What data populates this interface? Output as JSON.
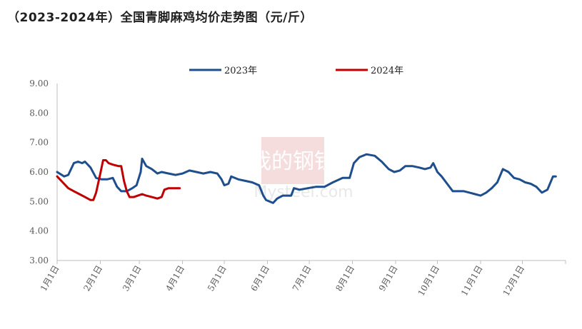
{
  "header": {
    "title": "（2023-2024年）全国青脚麻鸡均价走势图（元/斤）"
  },
  "watermark": {
    "text_cn": "我的钢铁",
    "text_en": "Mysteel.com"
  },
  "chart_data": {
    "type": "line",
    "title": "（2023-2024年）全国青脚麻鸡均价走势图（元/斤）",
    "xlabel": "",
    "ylabel": "",
    "ylim": [
      3.0,
      9.0
    ],
    "y_ticks": [
      "9.00",
      "8.00",
      "7.00",
      "6.00",
      "5.00",
      "4.00",
      "3.00"
    ],
    "x_ticks": [
      "1月1日",
      "2月1日",
      "3月1日",
      "4月1日",
      "5月1日",
      "6月1日",
      "7月1日",
      "8月1日",
      "9月1日",
      "10月1日",
      "11月1日",
      "12月1日"
    ],
    "legend_position": "top",
    "grid": false,
    "series": [
      {
        "name": "2023年",
        "color": "#1f4e8c",
        "points": [
          [
            0,
            6.0
          ],
          [
            5,
            5.85
          ],
          [
            8,
            5.9
          ],
          [
            12,
            6.3
          ],
          [
            15,
            6.35
          ],
          [
            18,
            6.3
          ],
          [
            20,
            6.35
          ],
          [
            24,
            6.15
          ],
          [
            28,
            5.8
          ],
          [
            32,
            5.75
          ],
          [
            36,
            5.75
          ],
          [
            40,
            5.8
          ],
          [
            43,
            5.5
          ],
          [
            46,
            5.35
          ],
          [
            50,
            5.35
          ],
          [
            54,
            5.45
          ],
          [
            57,
            5.55
          ],
          [
            60,
            6.0
          ],
          [
            61,
            6.45
          ],
          [
            64,
            6.2
          ],
          [
            68,
            6.1
          ],
          [
            72,
            5.95
          ],
          [
            75,
            6.0
          ],
          [
            80,
            5.95
          ],
          [
            85,
            5.9
          ],
          [
            90,
            5.95
          ],
          [
            95,
            6.05
          ],
          [
            100,
            6.0
          ],
          [
            105,
            5.95
          ],
          [
            110,
            6.0
          ],
          [
            115,
            5.95
          ],
          [
            118,
            5.75
          ],
          [
            120,
            5.55
          ],
          [
            123,
            5.6
          ],
          [
            125,
            5.85
          ],
          [
            130,
            5.75
          ],
          [
            135,
            5.7
          ],
          [
            140,
            5.65
          ],
          [
            145,
            5.55
          ],
          [
            148,
            5.2
          ],
          [
            150,
            5.05
          ],
          [
            155,
            4.95
          ],
          [
            158,
            5.1
          ],
          [
            162,
            5.2
          ],
          [
            168,
            5.2
          ],
          [
            170,
            5.45
          ],
          [
            174,
            5.4
          ],
          [
            180,
            5.45
          ],
          [
            186,
            5.5
          ],
          [
            192,
            5.5
          ],
          [
            198,
            5.65
          ],
          [
            205,
            5.8
          ],
          [
            210,
            5.8
          ],
          [
            213,
            6.3
          ],
          [
            217,
            6.5
          ],
          [
            222,
            6.6
          ],
          [
            228,
            6.55
          ],
          [
            233,
            6.35
          ],
          [
            238,
            6.1
          ],
          [
            242,
            6.0
          ],
          [
            246,
            6.05
          ],
          [
            250,
            6.2
          ],
          [
            255,
            6.2
          ],
          [
            260,
            6.15
          ],
          [
            264,
            6.1
          ],
          [
            268,
            6.15
          ],
          [
            270,
            6.3
          ],
          [
            273,
            6.0
          ],
          [
            276,
            5.85
          ],
          [
            280,
            5.6
          ],
          [
            284,
            5.35
          ],
          [
            288,
            5.35
          ],
          [
            292,
            5.35
          ],
          [
            296,
            5.3
          ],
          [
            300,
            5.25
          ],
          [
            304,
            5.2
          ],
          [
            308,
            5.3
          ],
          [
            312,
            5.45
          ],
          [
            316,
            5.65
          ],
          [
            320,
            6.1
          ],
          [
            324,
            6.0
          ],
          [
            328,
            5.8
          ],
          [
            332,
            5.75
          ],
          [
            336,
            5.65
          ],
          [
            340,
            5.6
          ],
          [
            344,
            5.5
          ],
          [
            348,
            5.3
          ],
          [
            352,
            5.4
          ],
          [
            356,
            5.85
          ],
          [
            358,
            5.85
          ]
        ]
      },
      {
        "name": "2024年",
        "color": "#c00000",
        "points": [
          [
            0,
            5.85
          ],
          [
            4,
            5.65
          ],
          [
            8,
            5.45
          ],
          [
            12,
            5.35
          ],
          [
            16,
            5.25
          ],
          [
            20,
            5.15
          ],
          [
            24,
            5.05
          ],
          [
            26,
            5.05
          ],
          [
            28,
            5.3
          ],
          [
            31,
            5.95
          ],
          [
            33,
            6.4
          ],
          [
            35,
            6.4
          ],
          [
            37,
            6.3
          ],
          [
            40,
            6.25
          ],
          [
            44,
            6.2
          ],
          [
            46,
            6.2
          ],
          [
            48,
            5.7
          ],
          [
            50,
            5.35
          ],
          [
            52,
            5.15
          ],
          [
            55,
            5.15
          ],
          [
            58,
            5.2
          ],
          [
            61,
            5.25
          ],
          [
            64,
            5.2
          ],
          [
            68,
            5.15
          ],
          [
            72,
            5.1
          ],
          [
            75,
            5.15
          ],
          [
            77,
            5.4
          ],
          [
            80,
            5.45
          ],
          [
            88,
            5.45
          ]
        ]
      }
    ]
  }
}
